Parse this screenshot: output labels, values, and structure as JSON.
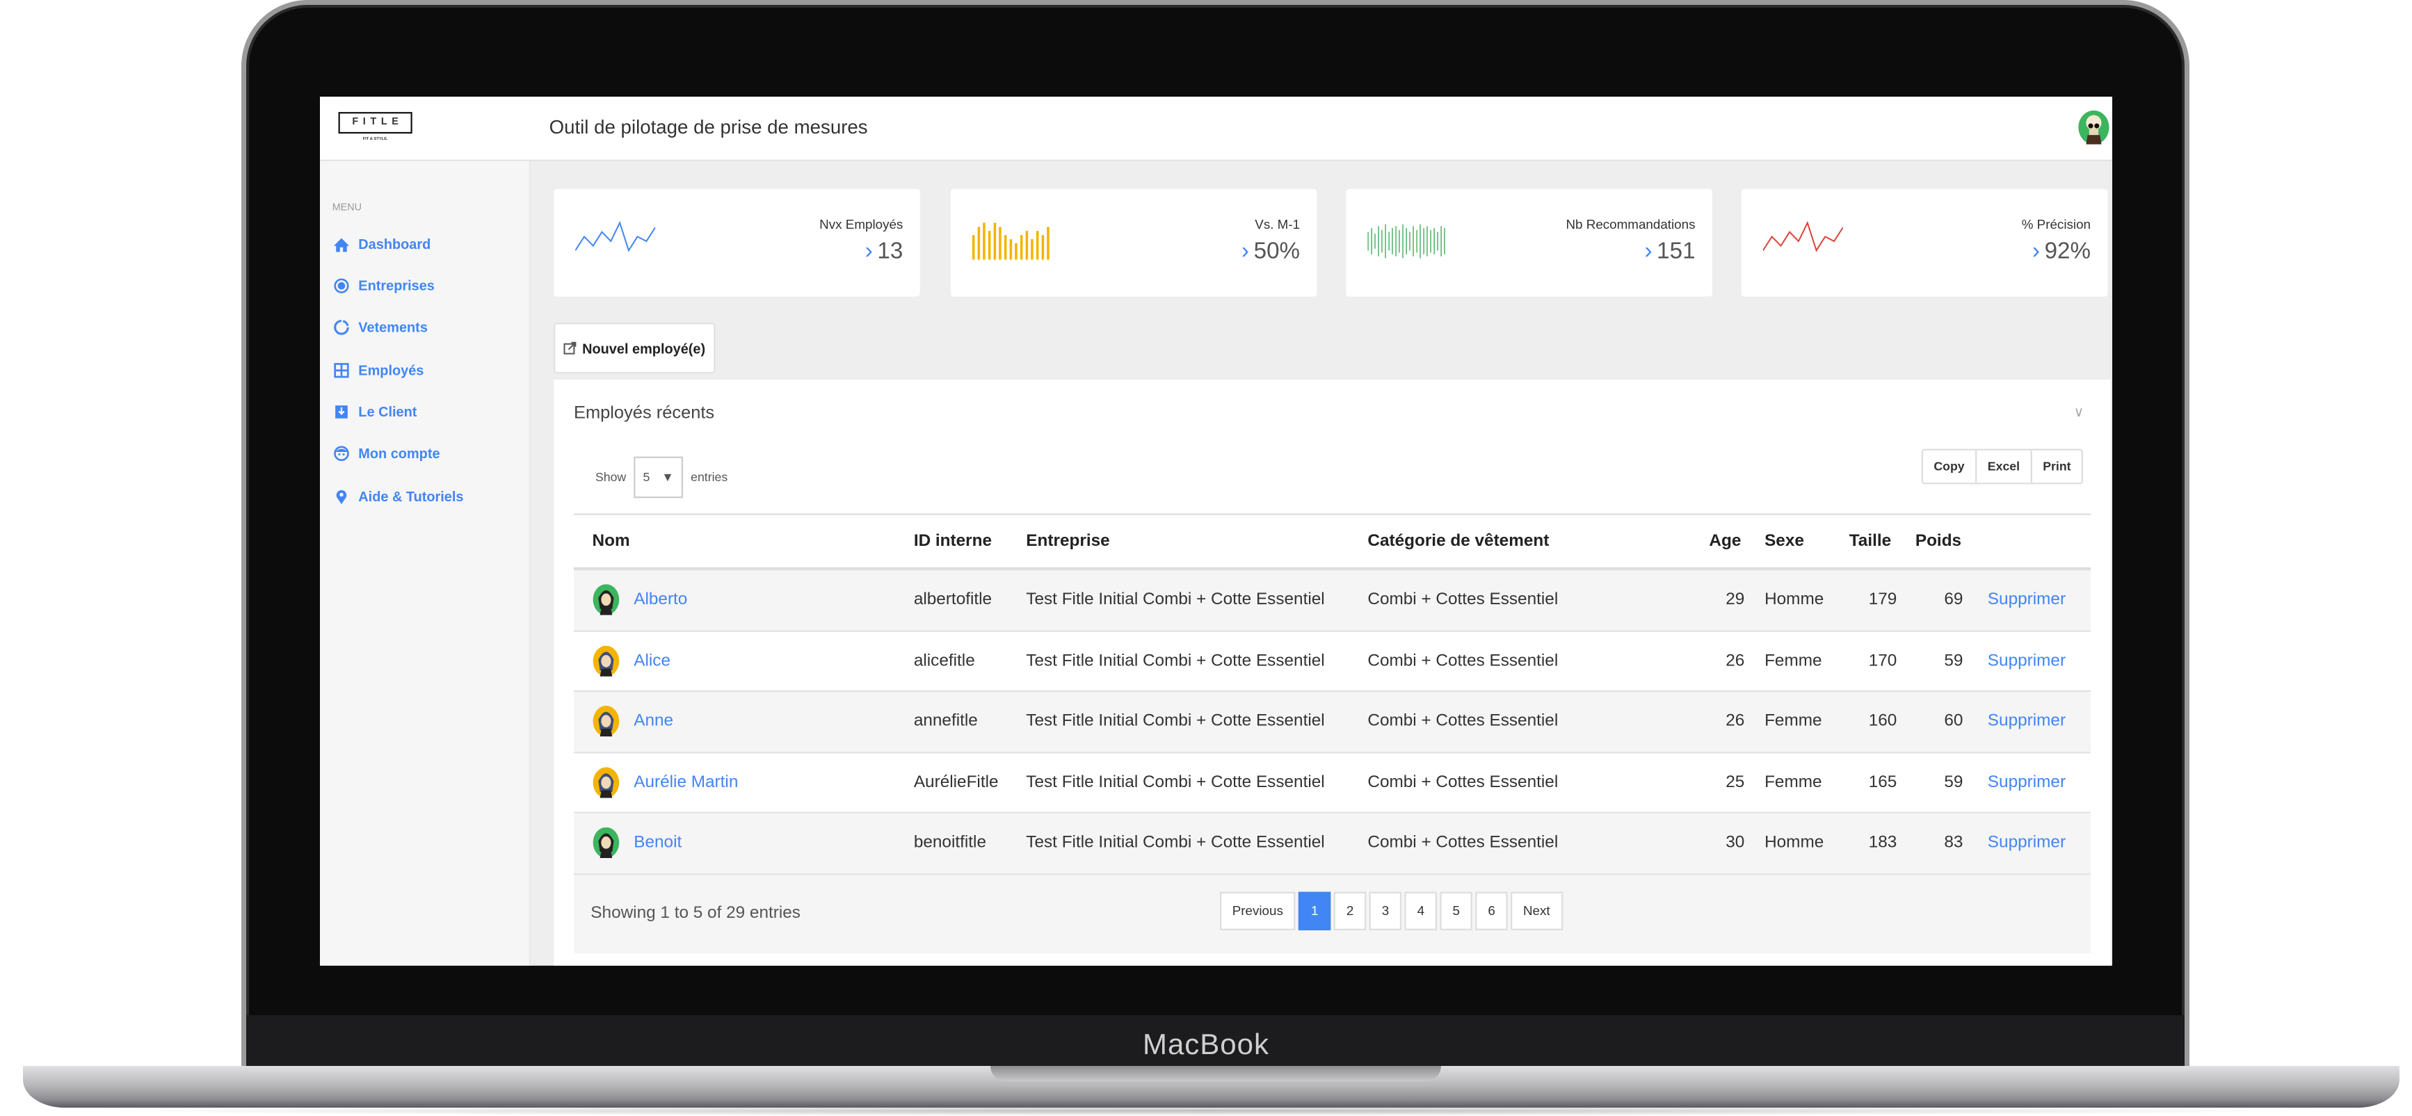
{
  "device_label": "MacBook",
  "header": {
    "logo_text": "FITLE",
    "logo_tagline": "FIT & STYLE.",
    "title": "Outil de pilotage de prise de mesures"
  },
  "sidebar": {
    "menu_label": "MENU",
    "items": [
      {
        "label": "Dashboard",
        "icon": "home-icon"
      },
      {
        "label": "Entreprises",
        "icon": "radio-circle-icon"
      },
      {
        "label": "Vetements",
        "icon": "circle-outline-icon"
      },
      {
        "label": "Employés",
        "icon": "grid-icon"
      },
      {
        "label": "Le Client",
        "icon": "download-box-icon"
      },
      {
        "label": "Mon compte",
        "icon": "face-icon"
      },
      {
        "label": "Aide & Tutoriels",
        "icon": "map-pin-icon"
      }
    ]
  },
  "cards": [
    {
      "label": "Nvx Employés",
      "value": "13",
      "type": "line",
      "color": "#4285f4",
      "spark": [
        2,
        5,
        3,
        6,
        4,
        8,
        2,
        5,
        4,
        7
      ]
    },
    {
      "label": "Vs. M-1",
      "value": "50%",
      "type": "bar",
      "color": "#f4b400",
      "spark": [
        6,
        8,
        9,
        7,
        9,
        8,
        6,
        5,
        4,
        6,
        7,
        5,
        7,
        6,
        8
      ]
    },
    {
      "label": "Nb Recommandations",
      "value": "151",
      "type": "bar-thin",
      "color": "#34a853",
      "spark": [
        5,
        7,
        4,
        8,
        6,
        9,
        5,
        7,
        8,
        6,
        9,
        7,
        5,
        8,
        6,
        9,
        7,
        8,
        6,
        7,
        5,
        8,
        7
      ]
    },
    {
      "label": "% Précision",
      "value": "92%",
      "type": "line",
      "color": "#db4437",
      "spark": [
        2,
        5,
        3,
        6,
        4,
        8,
        2,
        5,
        4,
        7
      ]
    }
  ],
  "new_employee_button": "Nouvel employé(e)",
  "panel": {
    "title": "Employés récents",
    "show_label": "Show",
    "entries_label": "entries",
    "page_size": "5",
    "export_buttons": [
      "Copy",
      "Excel",
      "Print"
    ],
    "columns": [
      "Nom",
      "ID interne",
      "Entreprise",
      "Catégorie de vêtement",
      "Age",
      "Sexe",
      "Taille",
      "Poids"
    ],
    "rows": [
      {
        "nom": "Alberto",
        "id": "albertofitle",
        "entreprise": "Test Fitle Initial Combi + Cotte Essentiel",
        "categorie": "Combi + Cottes Essentiel",
        "age": "29",
        "sexe": "Homme",
        "taille": "179",
        "poids": "69",
        "action": "Supprimer",
        "avatar_color": "#3cb55e"
      },
      {
        "nom": "Alice",
        "id": "alicefitle",
        "entreprise": "Test Fitle Initial Combi + Cotte Essentiel",
        "categorie": "Combi + Cottes Essentiel",
        "age": "26",
        "sexe": "Femme",
        "taille": "170",
        "poids": "59",
        "action": "Supprimer",
        "avatar_color": "#f4b400"
      },
      {
        "nom": "Anne",
        "id": "annefitle",
        "entreprise": "Test Fitle Initial Combi + Cotte Essentiel",
        "categorie": "Combi + Cottes Essentiel",
        "age": "26",
        "sexe": "Femme",
        "taille": "160",
        "poids": "60",
        "action": "Supprimer",
        "avatar_color": "#f4b400"
      },
      {
        "nom": "Aurélie Martin",
        "id": "AurélieFitle",
        "entreprise": "Test Fitle Initial Combi + Cotte Essentiel",
        "categorie": "Combi + Cottes Essentiel",
        "age": "25",
        "sexe": "Femme",
        "taille": "165",
        "poids": "59",
        "action": "Supprimer",
        "avatar_color": "#f4b400"
      },
      {
        "nom": "Benoit",
        "id": "benoitfitle",
        "entreprise": "Test Fitle Initial Combi + Cotte Essentiel",
        "categorie": "Combi + Cottes Essentiel",
        "age": "30",
        "sexe": "Homme",
        "taille": "183",
        "poids": "83",
        "action": "Supprimer",
        "avatar_color": "#3cb55e"
      }
    ],
    "info": "Showing 1 to 5 of 29 entries",
    "pagination": {
      "previous": "Previous",
      "pages": [
        "1",
        "2",
        "3",
        "4",
        "5",
        "6"
      ],
      "active": "1",
      "next": "Next"
    }
  },
  "accent_color": "#4285f4"
}
